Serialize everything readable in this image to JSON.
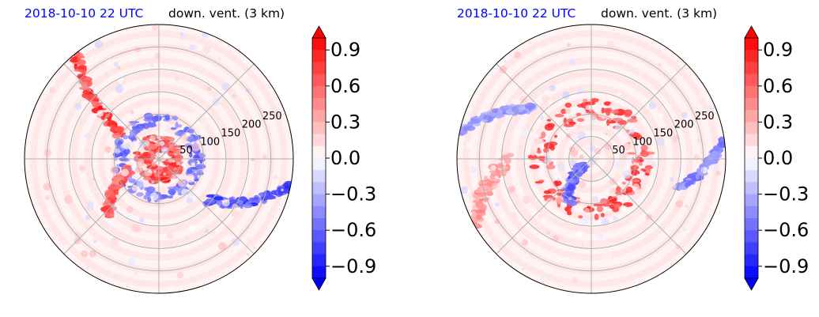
{
  "colors": {
    "neg": "#0000ff",
    "zero": "#ffffff",
    "pos": "#ff0000",
    "title_time": "#0000ff"
  },
  "chart_data": [
    {
      "type": "heatmap",
      "projection": "polar",
      "title_left": "2018-10-10 22 UTC",
      "title_right": "down. vent. (3 km)",
      "radial_ticks": [
        "50",
        "100",
        "150",
        "200",
        "250"
      ],
      "radial_range": [
        0,
        300
      ],
      "colorbar": {
        "ticks": [
          0.9,
          0.6,
          0.3,
          0.0,
          -0.3,
          -0.6,
          -0.9
        ],
        "tick_labels": [
          "0.9",
          "0.6",
          "0.3",
          "0.0",
          "−0.3",
          "−0.6",
          "−0.9"
        ],
        "range": [
          -1.0,
          1.0
        ],
        "extend": "both",
        "cmap": "bwr"
      },
      "grid": true,
      "features": [
        {
          "kind": "rain_band",
          "sign": 1,
          "angle_deg": 128,
          "r_start": 300,
          "r_end": 95,
          "width": 18,
          "strength": 1.0
        },
        {
          "kind": "ring",
          "sign": 1,
          "r_center": 35,
          "width": 18,
          "strength": 0.9
        },
        {
          "kind": "ring",
          "sign": -1,
          "r_center": 85,
          "width": 14,
          "strength": 0.7
        },
        {
          "kind": "band",
          "sign": -1,
          "angle_deg": -40,
          "r_start": 140,
          "r_end": 300,
          "width": 24,
          "strength": 0.9
        },
        {
          "kind": "band",
          "sign": 1,
          "angle_deg": 200,
          "r_start": 70,
          "r_end": 170,
          "width": 20,
          "strength": 0.8
        }
      ]
    },
    {
      "type": "heatmap",
      "projection": "polar",
      "title_left": "2018-10-10 22 UTC",
      "title_right": "down. vent. (3 km)",
      "radial_ticks": [
        "50",
        "100",
        "150",
        "200",
        "250"
      ],
      "radial_range": [
        0,
        300
      ],
      "colorbar": {
        "ticks": [
          0.9,
          0.6,
          0.3,
          0.0,
          -0.3,
          -0.6,
          -0.9
        ],
        "tick_labels": [
          "0.9",
          "0.6",
          "0.3",
          "0.0",
          "−0.3",
          "−0.6",
          "−0.9"
        ],
        "range": [
          -1.0,
          1.0
        ],
        "extend": "both",
        "cmap": "bwr"
      },
      "grid": true,
      "features": [
        {
          "kind": "ring",
          "sign": 1,
          "r_center": 110,
          "width": 22,
          "strength": 0.9
        },
        {
          "kind": "band",
          "sign": -1,
          "angle_deg": 215,
          "r_start": 20,
          "r_end": 110,
          "width": 16,
          "strength": 0.8
        },
        {
          "kind": "band",
          "sign": 1,
          "angle_deg": 180,
          "r_start": 180,
          "r_end": 300,
          "width": 40,
          "strength": 0.5
        },
        {
          "kind": "band",
          "sign": -1,
          "angle_deg": 140,
          "r_start": 170,
          "r_end": 300,
          "width": 20,
          "strength": 0.5
        },
        {
          "kind": "band",
          "sign": -1,
          "angle_deg": -20,
          "r_start": 200,
          "r_end": 300,
          "width": 20,
          "strength": 0.6
        }
      ]
    }
  ]
}
